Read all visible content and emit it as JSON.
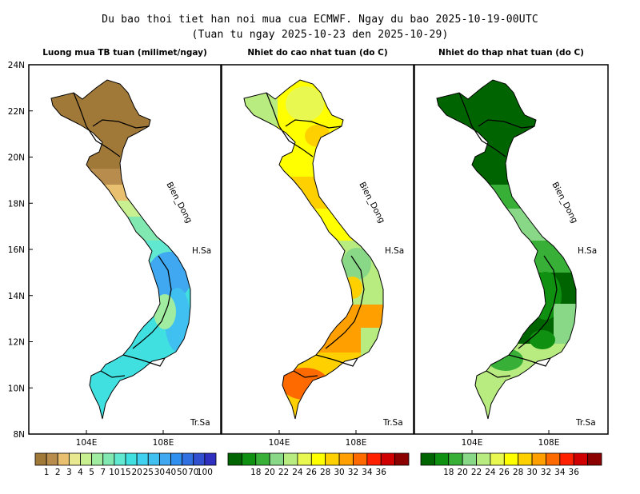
{
  "title": {
    "line1": "Du bao thoi tiet han noi mua cua ECMWF. Ngay du bao 2025-10-19-00UTC",
    "line2": "(Tuan tu ngay 2025-10-23 den 2025-10-29)"
  },
  "axes": {
    "lat_labels": [
      "24N",
      "22N",
      "20N",
      "18N",
      "16N",
      "14N",
      "12N",
      "10N",
      "8N"
    ],
    "lon_labels": [
      "104E",
      "108E"
    ]
  },
  "panels": [
    {
      "title": "Luong mua TB tuan (milimet/ngay)",
      "sea_label": "Bien_Dong",
      "label_hs": "H.Sa",
      "label_ts": "Tr.Sa",
      "legend_labels": [
        "1",
        "2",
        "3",
        "4",
        "5",
        "7",
        "10",
        "15",
        "20",
        "25",
        "30",
        "40",
        "50",
        "70",
        "100"
      ],
      "legend_colors": [
        "#a07838",
        "#b88c4c",
        "#e8c070",
        "#e8e890",
        "#c8f090",
        "#a0eca0",
        "#80e8b0",
        "#60e8d0",
        "#40e0e0",
        "#40d0f0",
        "#40c0f0",
        "#40a8f0",
        "#3090f0",
        "#3070e0",
        "#3050d0",
        "#3030c0"
      ]
    },
    {
      "title": "Nhiet do cao nhat tuan (do C)",
      "sea_label": "Bien_Dong",
      "label_hs": "H.Sa",
      "label_ts": "Tr.Sa",
      "legend_labels": [
        "18",
        "20",
        "22",
        "24",
        "26",
        "28",
        "30",
        "32",
        "34",
        "36"
      ],
      "legend_colors": [
        "#006400",
        "#109010",
        "#38b038",
        "#88d888",
        "#b8ec80",
        "#e8f850",
        "#ffff00",
        "#ffd000",
        "#ffa000",
        "#ff6a00",
        "#ff2000",
        "#d00000",
        "#8b0000"
      ]
    },
    {
      "title": "Nhiet do thap nhat tuan (do C)",
      "sea_label": "Bien_Dong",
      "label_hs": "H.Sa",
      "label_ts": "Tr.Sa",
      "legend_labels": [
        "18",
        "20",
        "22",
        "24",
        "26",
        "28",
        "30",
        "32",
        "34",
        "36"
      ],
      "legend_colors": [
        "#006400",
        "#109010",
        "#38b038",
        "#88d888",
        "#b8ec80",
        "#e8f850",
        "#ffff00",
        "#ffd000",
        "#ffa000",
        "#ff6a00",
        "#ff2000",
        "#d00000",
        "#8b0000"
      ]
    }
  ]
}
